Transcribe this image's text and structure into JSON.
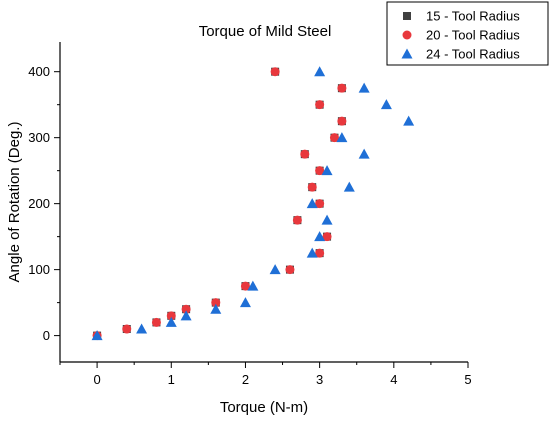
{
  "chart_data": {
    "type": "scatter",
    "title": "Torque of Mild Steel",
    "xlabel": "Torque (N-m)",
    "ylabel": "Angle of Rotation (Deg.)",
    "xlim": [
      -0.5,
      5
    ],
    "ylim": [
      -40,
      445
    ],
    "x_ticks": [
      0,
      1,
      2,
      3,
      4,
      5
    ],
    "y_ticks": [
      0,
      100,
      200,
      300,
      400
    ],
    "x_tick_labels": [
      "0",
      "1",
      "2",
      "3",
      "4",
      "5"
    ],
    "y_tick_labels": [
      "0",
      "100",
      "200",
      "300",
      "400"
    ],
    "legend_position": "top-right",
    "series": [
      {
        "name": "15 - Tool Radius",
        "marker": "square",
        "color": "#404040",
        "x": [
          0,
          0.4,
          0.8,
          1.0,
          1.2,
          1.6,
          2.0,
          2.6,
          2.7,
          2.8,
          2.9,
          3.0,
          3.0,
          3.1,
          3.0,
          3.2,
          3.3,
          3.0,
          3.3,
          2.4
        ],
        "y": [
          0,
          10,
          20,
          30,
          40,
          50,
          75,
          100,
          175,
          275,
          225,
          250,
          200,
          150,
          125,
          300,
          325,
          350,
          375,
          400
        ]
      },
      {
        "name": "20 - Tool Radius",
        "marker": "circle",
        "color": "#e8383d",
        "x": [
          0,
          0.4,
          0.8,
          1.0,
          1.2,
          1.6,
          2.0,
          2.6,
          2.7,
          2.8,
          2.9,
          3.0,
          3.0,
          3.1,
          3.0,
          3.2,
          3.3,
          3.0,
          3.3,
          2.4
        ],
        "y": [
          0,
          10,
          20,
          30,
          40,
          50,
          75,
          100,
          175,
          275,
          225,
          250,
          200,
          150,
          125,
          300,
          325,
          350,
          375,
          400
        ]
      },
      {
        "name": "24 - Tool Radius",
        "marker": "triangle",
        "color": "#1f6fd6",
        "x": [
          0,
          0.6,
          1.0,
          1.2,
          1.6,
          2.0,
          2.1,
          2.4,
          2.9,
          3.0,
          3.1,
          2.9,
          3.4,
          3.1,
          3.3,
          3.6,
          3.6,
          3.9,
          4.2,
          3.0
        ],
        "y": [
          0,
          10,
          20,
          30,
          40,
          50,
          75,
          100,
          125,
          150,
          175,
          200,
          225,
          250,
          300,
          275,
          375,
          350,
          325,
          400
        ]
      }
    ]
  }
}
